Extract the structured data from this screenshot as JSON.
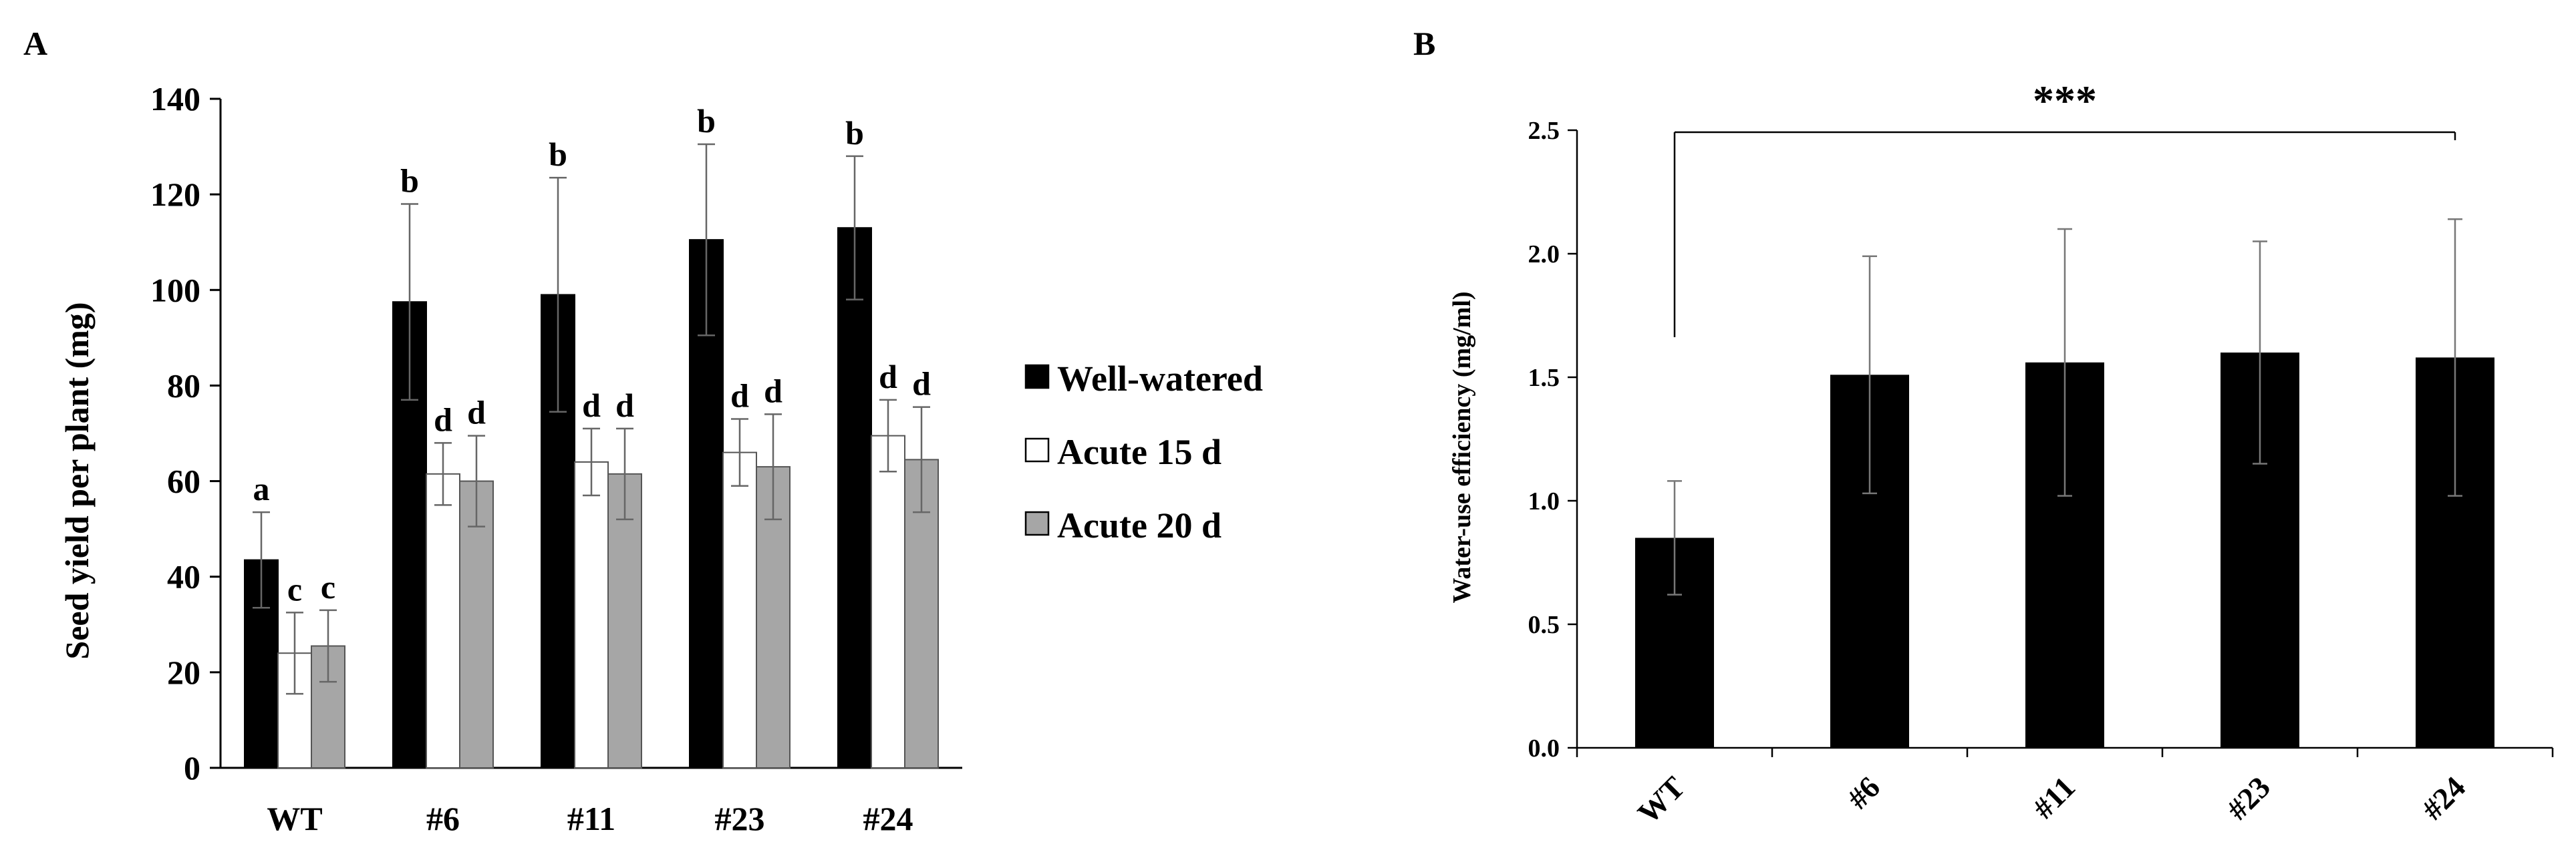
{
  "chart_data": [
    {
      "panel": "A",
      "type": "bar",
      "title": "",
      "xlabel": "",
      "ylabel": "Seed yield per plant (mg)",
      "ylim": [
        0,
        140
      ],
      "yticks": [
        "0",
        "20",
        "40",
        "60",
        "80",
        "100",
        "120",
        "140"
      ],
      "categories": [
        "WT",
        "#6",
        "#11",
        "#23",
        "#24"
      ],
      "series": [
        {
          "name": "Well-watered",
          "color": "#000000",
          "values": [
            43.5,
            97.5,
            99,
            110.5,
            113
          ],
          "errors": [
            10,
            20.5,
            24.5,
            20,
            15
          ],
          "letters": [
            "a",
            "b",
            "b",
            "b",
            "b"
          ]
        },
        {
          "name": "Acute 15 d",
          "color": "#ffffff",
          "values": [
            24,
            61.5,
            64,
            66,
            69.5
          ],
          "errors": [
            8.5,
            6.5,
            7,
            7,
            7.5
          ],
          "letters": [
            "c",
            "d",
            "d",
            "d",
            "d"
          ]
        },
        {
          "name": "Acute 20 d",
          "color": "#a6a6a6",
          "values": [
            25.5,
            60,
            61.5,
            63,
            64.5
          ],
          "errors": [
            7.5,
            9.5,
            9.5,
            11,
            11
          ],
          "letters": [
            "c",
            "d",
            "d",
            "d",
            "d"
          ]
        }
      ],
      "legend_position": "right"
    },
    {
      "panel": "B",
      "type": "bar",
      "title": "",
      "xlabel": "",
      "ylabel": "Water-use efficiency (mg/ml)",
      "ylim": [
        0,
        2.5
      ],
      "yticks": [
        "0.0",
        "0.5",
        "1.0",
        "1.5",
        "2.0",
        "2.5"
      ],
      "categories": [
        "WT",
        "#6",
        "#11",
        "#23",
        "#24"
      ],
      "series": [
        {
          "name": "Water-use efficiency",
          "color": "#000000",
          "values": [
            0.85,
            1.51,
            1.56,
            1.6,
            1.58
          ],
          "errors": [
            0.23,
            0.48,
            0.54,
            0.45,
            0.56
          ]
        }
      ],
      "annotation": "***"
    }
  ]
}
